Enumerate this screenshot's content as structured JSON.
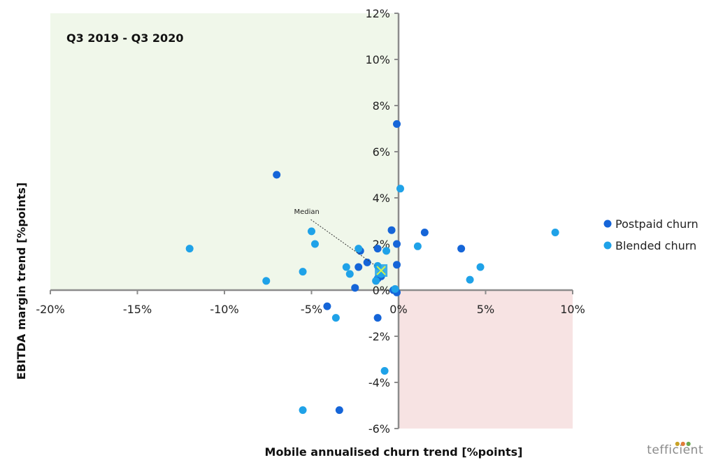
{
  "chart_data": {
    "type": "scatter",
    "period_label": "Q3 2019 - Q3 2020",
    "xlabel": "Mobile annualised churn trend [%points]",
    "ylabel": "EBITDA margin trend [%points]",
    "xlim": [
      -20,
      10
    ],
    "ylim": [
      -6,
      12
    ],
    "x_ticks": [
      -20,
      -15,
      -10,
      -5,
      0,
      5,
      10
    ],
    "x_tick_labels": [
      "-20%",
      "-15%",
      "-10%",
      "-5%",
      "0%",
      "5%",
      "10%"
    ],
    "y_ticks": [
      -6,
      -4,
      -2,
      0,
      2,
      4,
      6,
      8,
      10,
      12
    ],
    "y_tick_labels": [
      "-6%",
      "-4%",
      "-2%",
      "0%",
      "2%",
      "4%",
      "6%",
      "8%",
      "10%",
      "12%"
    ],
    "grid": false,
    "legend_position": "right",
    "quadrants": [
      {
        "name": "top-left",
        "x": [
          -20,
          0
        ],
        "y": [
          0,
          12
        ],
        "color": "#f0f7ea"
      },
      {
        "name": "bottom-right",
        "x": [
          0,
          10
        ],
        "y": [
          -6,
          0
        ],
        "color": "#f7e3e3"
      }
    ],
    "series": [
      {
        "name": "Postpaid churn",
        "color": "#1565d8",
        "points": [
          [
            -0.1,
            7.2
          ],
          [
            -7.0,
            5.0
          ],
          [
            -0.4,
            2.6
          ],
          [
            1.5,
            2.5
          ],
          [
            -0.1,
            2.0
          ],
          [
            3.6,
            1.8
          ],
          [
            -1.2,
            1.8
          ],
          [
            -2.2,
            1.7
          ],
          [
            -0.1,
            1.1
          ],
          [
            -1.8,
            1.2
          ],
          [
            -2.3,
            1.0
          ],
          [
            -1.0,
            0.6
          ],
          [
            -1.2,
            0.5
          ],
          [
            -2.5,
            0.1
          ],
          [
            -0.3,
            0.0
          ],
          [
            -0.1,
            -0.1
          ],
          [
            -4.1,
            -0.7
          ],
          [
            -1.2,
            -1.2
          ],
          [
            -3.4,
            -5.2
          ]
        ]
      },
      {
        "name": "Blended churn",
        "color": "#1fa2e8",
        "points": [
          [
            0.1,
            4.4
          ],
          [
            9.0,
            2.5
          ],
          [
            -5.0,
            2.55
          ],
          [
            -4.8,
            2.0
          ],
          [
            -12.0,
            1.8
          ],
          [
            1.1,
            1.9
          ],
          [
            -0.7,
            1.7
          ],
          [
            -2.3,
            1.8
          ],
          [
            4.7,
            1.0
          ],
          [
            -3.0,
            1.0
          ],
          [
            -1.2,
            1.05
          ],
          [
            -5.5,
            0.8
          ],
          [
            -2.8,
            0.7
          ],
          [
            -1.0,
            0.7
          ],
          [
            4.1,
            0.45
          ],
          [
            -7.6,
            0.4
          ],
          [
            -1.3,
            0.4
          ],
          [
            -0.2,
            0.05
          ],
          [
            -3.6,
            -1.2
          ],
          [
            -0.8,
            -3.5
          ],
          [
            -5.5,
            -5.2
          ]
        ]
      }
    ],
    "median": {
      "label": "Median",
      "point": [
        -1.0,
        0.85
      ],
      "label_point": [
        -5.2,
        3.3
      ]
    }
  },
  "logo_text": "tefficient",
  "logo_dots": [
    "#c9a227",
    "#e07b39",
    "#6aa84f"
  ]
}
